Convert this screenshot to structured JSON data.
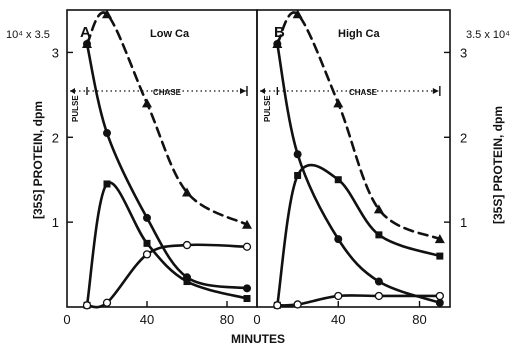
{
  "figure": {
    "x_axis_title": "MINUTES",
    "y_axis_title_left": "[35S] PROTEIN, dpm",
    "y_axis_title_right": "[35S] PROTEIN, dpm",
    "y_multiplier_left": "10⁴ x 3.5",
    "y_multiplier_right": "3.5 x 10⁴",
    "pulse_label": "PULSE",
    "chase_label": "CHASE"
  },
  "chart_data": [
    {
      "type": "line",
      "panel_letter": "A",
      "title": "Low Ca",
      "xlabel": "MINUTES",
      "ylabel": "[35S] PROTEIN, dpm",
      "xlim": [
        0,
        95
      ],
      "ylim": [
        0,
        3.5
      ],
      "x_ticks": [
        0,
        40,
        80
      ],
      "y_ticks": [
        1,
        2,
        3
      ],
      "y_tick_labels": [
        "1",
        "2",
        "3"
      ],
      "pulse_end_x": 10,
      "chase_end_x": 90,
      "grid": false,
      "series": [
        {
          "marker": "triangle",
          "dashed": true,
          "x": [
            10,
            20,
            40,
            60,
            90
          ],
          "y": [
            3.1,
            3.45,
            2.4,
            1.35,
            0.97
          ]
        },
        {
          "marker": "circle",
          "dashed": false,
          "x": [
            10,
            20,
            40,
            60,
            90
          ],
          "y": [
            3.1,
            2.05,
            1.05,
            0.35,
            0.22
          ]
        },
        {
          "marker": "square",
          "dashed": false,
          "x": [
            10,
            20,
            40,
            60,
            90
          ],
          "y": [
            0.02,
            1.45,
            0.75,
            0.3,
            0.1
          ]
        },
        {
          "marker": "open-circle",
          "dashed": false,
          "x": [
            10,
            20,
            40,
            60,
            90
          ],
          "y": [
            0.02,
            0.05,
            0.62,
            0.73,
            0.71
          ]
        }
      ]
    },
    {
      "type": "line",
      "panel_letter": "B",
      "title": "High Ca",
      "xlabel": "MINUTES",
      "ylabel": "[35S] PROTEIN, dpm",
      "xlim": [
        0,
        95
      ],
      "ylim": [
        0,
        3.5
      ],
      "x_ticks": [
        0,
        40,
        80
      ],
      "y_ticks": [
        1,
        2,
        3
      ],
      "y_tick_labels": [
        "1",
        "2",
        "3"
      ],
      "pulse_end_x": 10,
      "chase_end_x": 90,
      "grid": false,
      "series": [
        {
          "marker": "triangle",
          "dashed": true,
          "x": [
            10,
            20,
            40,
            60,
            90
          ],
          "y": [
            3.1,
            3.45,
            2.4,
            1.15,
            0.8
          ]
        },
        {
          "marker": "circle",
          "dashed": false,
          "x": [
            10,
            20,
            40,
            60,
            90
          ],
          "y": [
            3.1,
            1.8,
            0.8,
            0.3,
            0.05
          ]
        },
        {
          "marker": "square",
          "dashed": false,
          "x": [
            10,
            20,
            40,
            60,
            90
          ],
          "y": [
            0.02,
            1.55,
            1.5,
            0.85,
            0.6
          ]
        },
        {
          "marker": "open-circle",
          "dashed": false,
          "x": [
            10,
            20,
            40,
            60,
            90
          ],
          "y": [
            0.02,
            0.03,
            0.13,
            0.13,
            0.13
          ]
        }
      ]
    }
  ]
}
